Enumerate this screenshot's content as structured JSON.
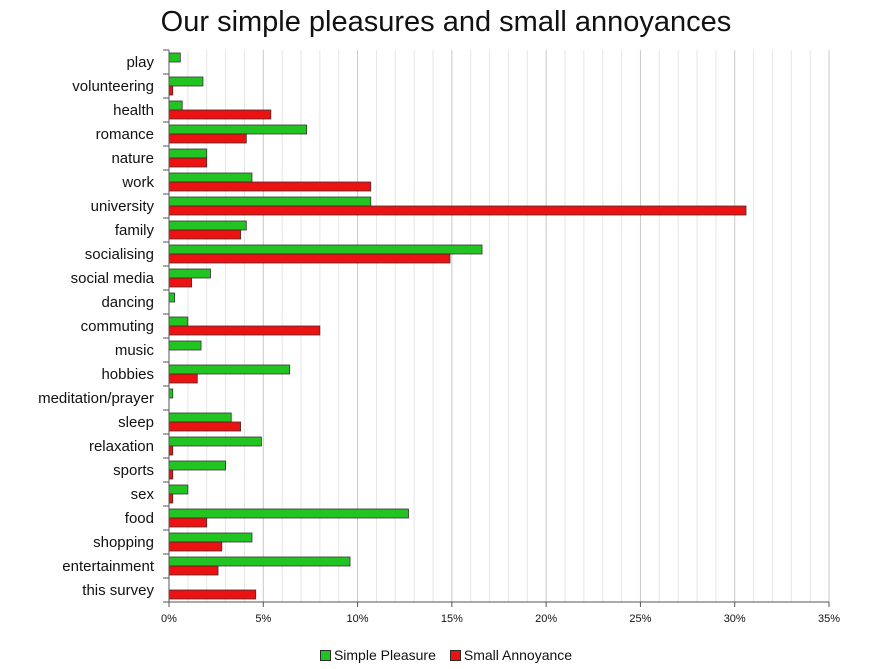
{
  "chart_data": {
    "type": "bar",
    "orientation": "horizontal",
    "title": "Our simple pleasures and small annoyances",
    "xlabel": "",
    "ylabel": "",
    "categories": [
      "play",
      "volunteering",
      "health",
      "romance",
      "nature",
      "work",
      "university",
      "family",
      "socialising",
      "social media",
      "dancing",
      "commuting",
      "music",
      "hobbies",
      "meditation/prayer",
      "sleep",
      "relaxation",
      "sports",
      "sex",
      "food",
      "shopping",
      "entertainment",
      "this survey"
    ],
    "series": [
      {
        "name": "Simple Pleasure",
        "color": "#22c422",
        "values": [
          0.6,
          1.8,
          0.7,
          7.3,
          2.0,
          4.4,
          10.7,
          4.1,
          16.6,
          2.2,
          0.3,
          1.0,
          1.7,
          6.4,
          0.2,
          3.3,
          4.9,
          3.0,
          1.0,
          12.7,
          4.4,
          9.6,
          0.0
        ]
      },
      {
        "name": "Small Annoyance",
        "color": "#ee1111",
        "values": [
          0.0,
          0.2,
          5.4,
          4.1,
          2.0,
          10.7,
          30.6,
          3.8,
          14.9,
          1.2,
          0.0,
          8.0,
          0.0,
          1.5,
          0.0,
          3.8,
          0.2,
          0.2,
          0.2,
          2.0,
          2.8,
          2.6,
          4.6
        ]
      }
    ],
    "xlim": [
      0,
      35
    ],
    "xticks": [
      "0%",
      "5%",
      "10%",
      "15%",
      "20%",
      "25%",
      "30%",
      "35%"
    ],
    "unit": "%",
    "grid": "vertical gridlines",
    "legend": "bottom-center"
  }
}
